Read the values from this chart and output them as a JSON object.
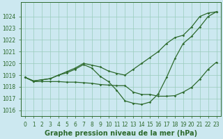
{
  "title": "Graphe pression niveau de la mer (hPa)",
  "bg_color": "#cce8f0",
  "line_color": "#2d6a2d",
  "grid_color": "#99ccbb",
  "x": [
    0,
    1,
    2,
    3,
    4,
    5,
    6,
    7,
    8,
    9,
    10,
    11,
    12,
    13,
    14,
    15,
    16,
    17,
    18,
    19,
    20,
    21,
    22,
    23
  ],
  "y_line1": [
    1018.8,
    1018.5,
    1018.6,
    1018.7,
    1019.0,
    1019.3,
    1019.6,
    1020.0,
    1019.85,
    1019.7,
    1019.35,
    1019.15,
    1019.0,
    1019.5,
    1020.0,
    1020.5,
    1021.0,
    1021.7,
    1022.2,
    1022.4,
    1023.1,
    1024.0,
    1024.3,
    1024.4
  ],
  "y_line2": [
    1018.8,
    1018.5,
    1018.6,
    1018.7,
    1019.0,
    1019.2,
    1019.5,
    1019.9,
    1019.6,
    1018.9,
    1018.45,
    1017.7,
    1016.8,
    1016.6,
    1016.5,
    1016.7,
    1017.4,
    1018.8,
    1020.4,
    1021.7,
    1022.3,
    1023.1,
    1024.0,
    1024.4
  ],
  "y_line3": [
    1018.8,
    1018.45,
    1018.45,
    1018.45,
    1018.45,
    1018.4,
    1018.4,
    1018.35,
    1018.3,
    1018.2,
    1018.15,
    1018.1,
    1018.1,
    1017.55,
    1017.35,
    1017.35,
    1017.2,
    1017.2,
    1017.25,
    1017.55,
    1017.95,
    1018.65,
    1019.5,
    1020.1
  ],
  "ylim": [
    1015.5,
    1025.2
  ],
  "yticks": [
    1016,
    1017,
    1018,
    1019,
    1020,
    1021,
    1022,
    1023,
    1024
  ],
  "xticks": [
    0,
    1,
    2,
    3,
    4,
    5,
    6,
    7,
    8,
    9,
    10,
    11,
    12,
    13,
    14,
    15,
    16,
    17,
    18,
    19,
    20,
    21,
    22,
    23
  ],
  "tick_fontsize": 5.5,
  "title_fontsize": 7.0,
  "marker": "D",
  "marker_size": 1.8,
  "line_width": 0.9
}
